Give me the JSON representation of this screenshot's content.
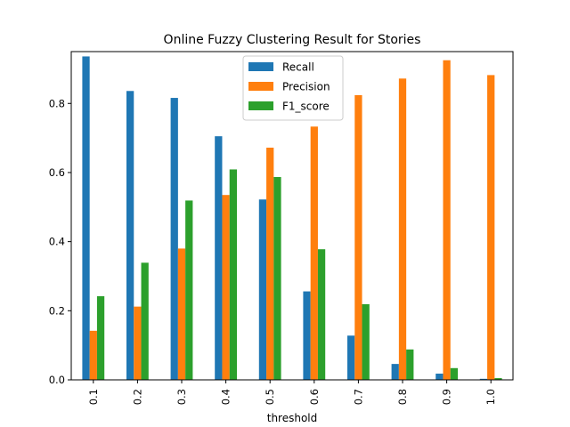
{
  "chart_data": {
    "type": "bar",
    "title": "Online Fuzzy Clustering Result for Stories",
    "xlabel": "threshold",
    "ylabel": "",
    "categories": [
      "0.1",
      "0.2",
      "0.3",
      "0.4",
      "0.5",
      "0.6",
      "0.7",
      "0.8",
      "0.9",
      "1.0"
    ],
    "series": [
      {
        "name": "Recall",
        "color": "#1f77b4",
        "values": [
          0.936,
          0.836,
          0.816,
          0.705,
          0.522,
          0.256,
          0.128,
          0.046,
          0.018,
          0.003
        ]
      },
      {
        "name": "Precision",
        "color": "#ff7f0e",
        "values": [
          0.142,
          0.212,
          0.38,
          0.535,
          0.672,
          0.733,
          0.824,
          0.872,
          0.925,
          0.882
        ]
      },
      {
        "name": "F1_score",
        "color": "#2ca02c",
        "values": [
          0.242,
          0.339,
          0.519,
          0.609,
          0.587,
          0.378,
          0.219,
          0.088,
          0.034,
          0.005
        ]
      }
    ],
    "ylim": [
      0,
      0.95
    ],
    "yticks": [
      "0.0",
      "0.2",
      "0.4",
      "0.6",
      "0.8"
    ],
    "grid": false,
    "legend_position": "top-center"
  }
}
